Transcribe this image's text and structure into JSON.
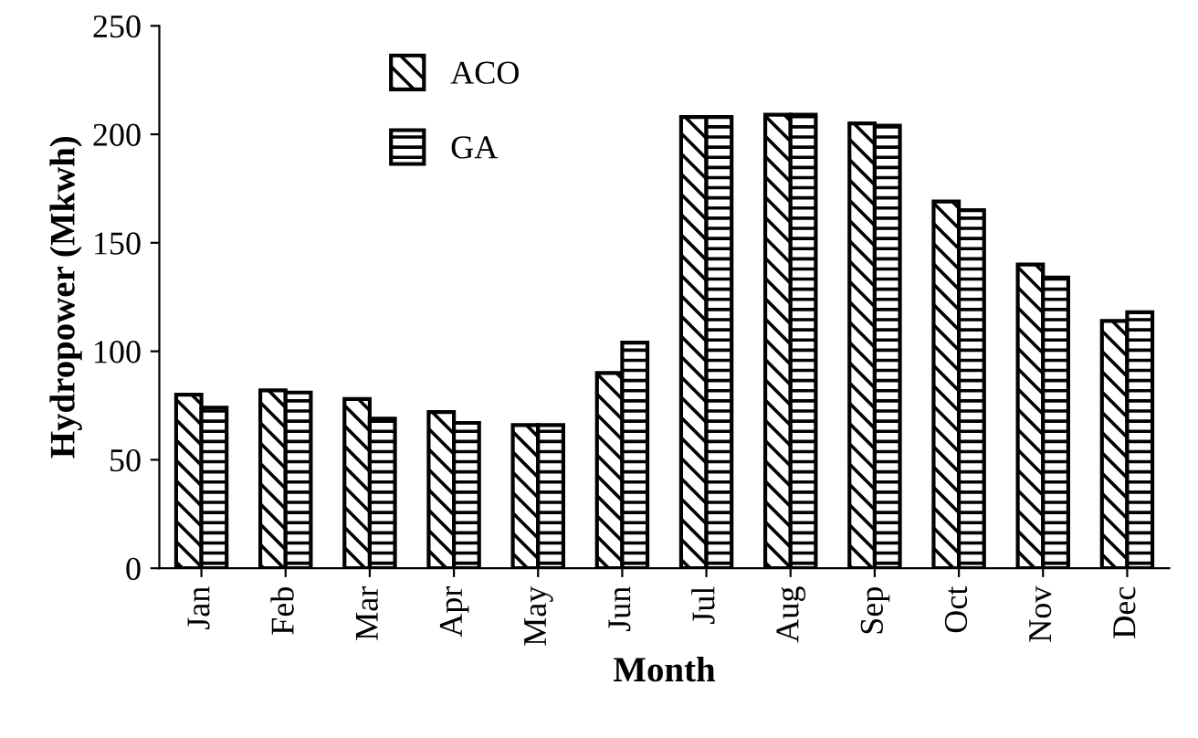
{
  "chart_data": {
    "type": "bar",
    "xlabel": "Month",
    "ylabel": "Hydropower (Mkwh)",
    "categories": [
      "Jan",
      "Feb",
      "Mar",
      "Apr",
      "May",
      "Jun",
      "Jul",
      "Aug",
      "Sep",
      "Oct",
      "Nov",
      "Dec"
    ],
    "series": [
      {
        "name": "ACO",
        "color": "#000000",
        "values": [
          80,
          82,
          78,
          72,
          66,
          90,
          208,
          209,
          205,
          169,
          140,
          114
        ]
      },
      {
        "name": "GA",
        "color": "#000000",
        "values": [
          74,
          81,
          69,
          67,
          66,
          104,
          208,
          209,
          204,
          165,
          134,
          118
        ]
      }
    ],
    "ylim": [
      0,
      250
    ],
    "yticks": [
      0,
      50,
      100,
      150,
      200,
      250
    ],
    "grid": false,
    "legend": "top left"
  }
}
